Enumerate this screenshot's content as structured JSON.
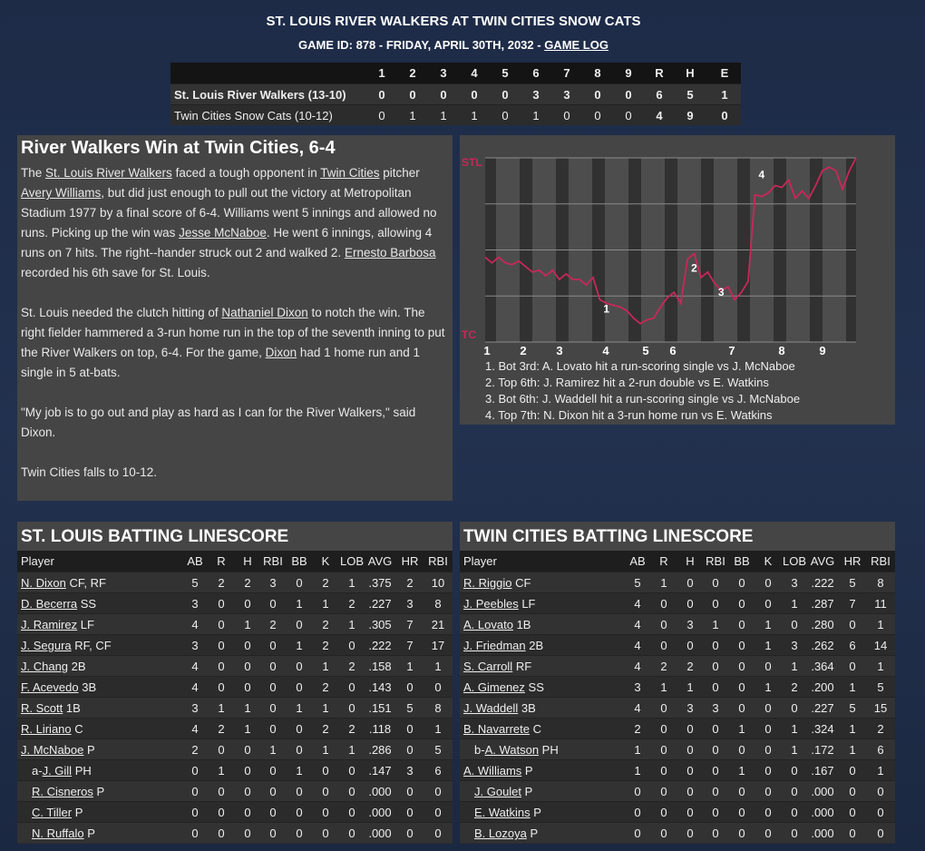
{
  "header": {
    "title": "ST. LOUIS RIVER WALKERS AT TWIN CITIES SNOW CATS",
    "subtitle": "GAME ID: 878 - FRIDAY, APRIL 30TH, 2032 - ",
    "link": "GAME LOG"
  },
  "linescore": {
    "columns": [
      "1",
      "2",
      "3",
      "4",
      "5",
      "6",
      "7",
      "8",
      "9",
      "R",
      "H",
      "E"
    ],
    "rows": [
      {
        "team": "St. Louis River Walkers (13-10)",
        "cells": [
          0,
          0,
          0,
          0,
          0,
          3,
          3,
          0,
          0,
          6,
          5,
          1
        ]
      },
      {
        "team": "Twin Cities Snow Cats (10-12)",
        "cells": [
          0,
          1,
          1,
          1,
          0,
          1,
          0,
          0,
          0,
          4,
          9,
          0
        ]
      }
    ]
  },
  "article": {
    "title": "River Walkers Win at Twin Cities, 6-4",
    "paragraphs": [
      [
        "The ",
        {
          "text": "St. Louis River Walkers",
          "link": true
        },
        " faced a tough opponent in ",
        {
          "text": "Twin Cities",
          "link": true
        },
        " pitcher ",
        {
          "text": "Avery Williams",
          "link": true
        },
        ", but did just enough to pull out the victory at Metropolitan Stadium 1977 by a final score of 6-4. Williams went 5 innings and allowed no runs. Picking up the win was ",
        {
          "text": "Jesse McNaboe",
          "link": true
        },
        ". He went 6 innings, allowing 4 runs on 7 hits. The right--hander struck out 2 and walked 2. ",
        {
          "text": "Ernesto Barbosa",
          "link": true
        },
        " recorded his 6th save for St. Louis."
      ],
      [
        "St. Louis needed the clutch hitting of ",
        {
          "text": "Nathaniel Dixon",
          "link": true
        },
        " to notch the win. The right fielder hammered a 3-run home run in the top of the seventh inning to put the River Walkers on top, 6-4. For the game, ",
        {
          "text": "Dixon",
          "link": true
        },
        " had 1 home run and 1 single in 5 at-bats."
      ],
      [
        "\"My job is to go out and play as hard as I can for the River Walkers,\" said Dixon."
      ],
      [
        "Twin Cities falls to 10-12."
      ]
    ]
  },
  "win_chart": {
    "type": "line",
    "top_label": "STL",
    "bottom_label": "TC",
    "color": "#c8285a",
    "ylim": [
      0,
      100
    ],
    "yticks": [
      0,
      25,
      50,
      75,
      100
    ],
    "innings": [
      "1",
      "2",
      "3",
      "4",
      "5",
      "6",
      "7",
      "8",
      "9"
    ],
    "values": [
      46,
      43,
      46,
      43,
      42,
      44,
      41,
      38,
      39,
      36,
      39,
      34,
      37,
      34,
      34,
      31,
      35,
      23,
      21,
      20,
      19,
      17,
      13,
      10,
      12,
      13,
      19,
      24,
      27,
      21,
      45,
      48,
      35,
      38,
      32,
      28,
      30,
      23,
      27,
      33,
      80,
      79,
      81,
      85,
      84,
      88,
      78,
      82,
      78,
      85,
      93,
      95,
      93,
      83,
      93,
      100
    ],
    "markers": [
      "1",
      "2",
      "3",
      "4"
    ],
    "notes": [
      "1. Bot 3rd: A. Lovato hit a run-scoring single vs J. McNaboe",
      "2. Top 6th: J. Ramirez hit a 2-run double vs E. Watkins",
      "3. Bot 6th: J. Waddell hit a run-scoring single vs J. McNaboe",
      "4. Top 7th: N. Dixon hit a 3-run home run vs E. Watkins"
    ]
  },
  "batting": [
    {
      "title": "ST. LOUIS BATTING LINESCORE",
      "columns": [
        "Player",
        "AB",
        "R",
        "H",
        "RBI",
        "BB",
        "K",
        "LOB",
        "AVG",
        "HR",
        "RBI"
      ],
      "rows": [
        {
          "name": "N. Dixon",
          "pos": "CF, RF",
          "stats": [
            5,
            2,
            2,
            3,
            0,
            2,
            1,
            ".375",
            2,
            10
          ]
        },
        {
          "name": "D. Becerra",
          "pos": "SS",
          "stats": [
            3,
            0,
            0,
            0,
            1,
            1,
            2,
            ".227",
            3,
            8
          ]
        },
        {
          "name": "J. Ramirez",
          "pos": "LF",
          "stats": [
            4,
            0,
            1,
            2,
            0,
            2,
            1,
            ".305",
            7,
            21
          ]
        },
        {
          "name": "J. Segura",
          "pos": "RF, CF",
          "stats": [
            3,
            0,
            0,
            0,
            1,
            2,
            0,
            ".222",
            7,
            17
          ]
        },
        {
          "name": "J. Chang",
          "pos": "2B",
          "stats": [
            4,
            0,
            0,
            0,
            0,
            1,
            2,
            ".158",
            1,
            1
          ]
        },
        {
          "name": "F. Acevedo",
          "pos": "3B",
          "stats": [
            4,
            0,
            0,
            0,
            0,
            2,
            0,
            ".143",
            0,
            0
          ]
        },
        {
          "name": "R. Scott",
          "pos": "1B",
          "stats": [
            3,
            1,
            1,
            0,
            1,
            1,
            0,
            ".151",
            5,
            8
          ]
        },
        {
          "name": "R. Liriano",
          "pos": "C",
          "stats": [
            4,
            2,
            1,
            0,
            0,
            2,
            2,
            ".118",
            0,
            1
          ]
        },
        {
          "name": "J. McNaboe",
          "pos": "P",
          "stats": [
            2,
            0,
            0,
            1,
            0,
            1,
            1,
            ".286",
            0,
            5
          ]
        },
        {
          "prefix": "a-",
          "name": "J. Gill",
          "pos": "PH",
          "indent": true,
          "stats": [
            0,
            1,
            0,
            0,
            1,
            0,
            0,
            ".147",
            3,
            6
          ]
        },
        {
          "name": "R. Cisneros",
          "pos": "P",
          "indent": true,
          "stats": [
            0,
            0,
            0,
            0,
            0,
            0,
            0,
            ".000",
            0,
            0
          ]
        },
        {
          "name": "C. Tiller",
          "pos": "P",
          "indent": true,
          "stats": [
            0,
            0,
            0,
            0,
            0,
            0,
            0,
            ".000",
            0,
            0
          ]
        },
        {
          "name": "N. Ruffalo",
          "pos": "P",
          "indent": true,
          "stats": [
            0,
            0,
            0,
            0,
            0,
            0,
            0,
            ".000",
            0,
            0
          ]
        }
      ]
    },
    {
      "title": "TWIN CITIES BATTING LINESCORE",
      "columns": [
        "Player",
        "AB",
        "R",
        "H",
        "RBI",
        "BB",
        "K",
        "LOB",
        "AVG",
        "HR",
        "RBI"
      ],
      "rows": [
        {
          "name": "R. Riggio",
          "pos": "CF",
          "stats": [
            5,
            1,
            0,
            0,
            0,
            0,
            3,
            ".222",
            5,
            8
          ]
        },
        {
          "name": "J. Peebles",
          "pos": "LF",
          "stats": [
            4,
            0,
            0,
            0,
            0,
            0,
            1,
            ".287",
            7,
            11
          ]
        },
        {
          "name": "A. Lovato",
          "pos": "1B",
          "stats": [
            4,
            0,
            3,
            1,
            0,
            1,
            0,
            ".280",
            0,
            1
          ]
        },
        {
          "name": "J. Friedman",
          "pos": "2B",
          "stats": [
            4,
            0,
            0,
            0,
            0,
            1,
            3,
            ".262",
            6,
            14
          ]
        },
        {
          "name": "S. Carroll",
          "pos": "RF",
          "stats": [
            4,
            2,
            2,
            0,
            0,
            0,
            1,
            ".364",
            0,
            1
          ]
        },
        {
          "name": "A. Gimenez",
          "pos": "SS",
          "stats": [
            3,
            1,
            1,
            0,
            0,
            1,
            2,
            ".200",
            1,
            5
          ]
        },
        {
          "name": "J. Waddell",
          "pos": "3B",
          "stats": [
            4,
            0,
            3,
            3,
            0,
            0,
            0,
            ".227",
            5,
            15
          ]
        },
        {
          "name": "B. Navarrete",
          "pos": "C",
          "stats": [
            2,
            0,
            0,
            0,
            1,
            0,
            1,
            ".324",
            1,
            2
          ]
        },
        {
          "prefix": "b-",
          "name": "A. Watson",
          "pos": "PH",
          "indent": true,
          "stats": [
            1,
            0,
            0,
            0,
            0,
            0,
            1,
            ".172",
            1,
            6
          ]
        },
        {
          "name": "A. Williams",
          "pos": "P",
          "stats": [
            1,
            0,
            0,
            0,
            1,
            0,
            0,
            ".167",
            0,
            1
          ]
        },
        {
          "name": "J. Goulet",
          "pos": "P",
          "indent": true,
          "stats": [
            0,
            0,
            0,
            0,
            0,
            0,
            0,
            ".000",
            0,
            0
          ]
        },
        {
          "name": "E. Watkins",
          "pos": "P",
          "indent": true,
          "stats": [
            0,
            0,
            0,
            0,
            0,
            0,
            0,
            ".000",
            0,
            0
          ]
        },
        {
          "name": "B. Lozoya",
          "pos": "P",
          "indent": true,
          "stats": [
            0,
            0,
            0,
            0,
            0,
            0,
            0,
            ".000",
            0,
            0
          ]
        }
      ]
    }
  ]
}
